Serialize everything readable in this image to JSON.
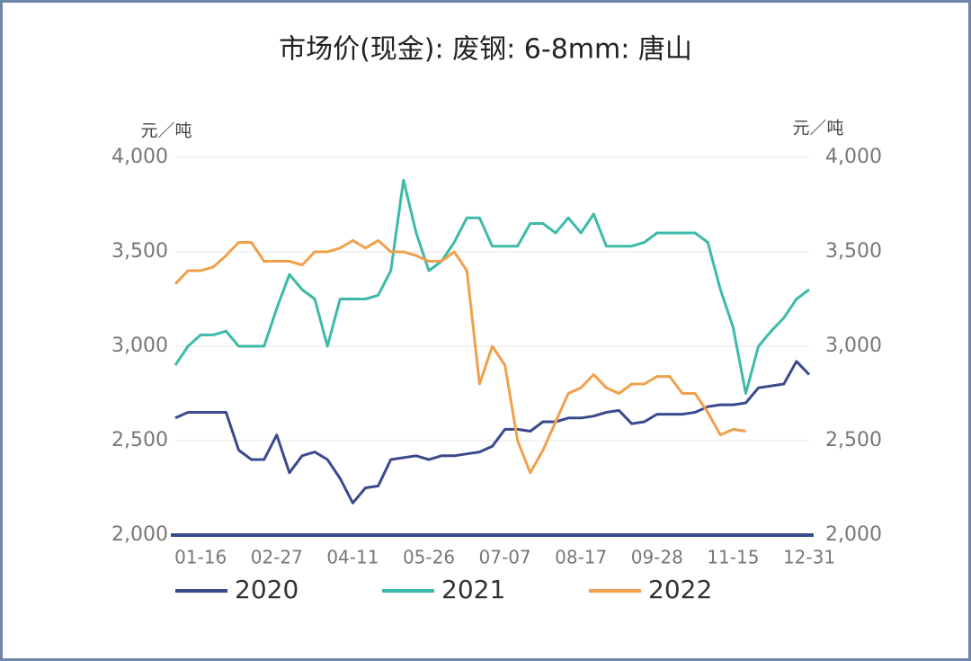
{
  "chart_data": {
    "type": "line",
    "title": "市场价(现金): 废钢: 6-8mm: 唐山",
    "ylabel": "元／吨",
    "y2label": "元／吨",
    "categories": [
      null,
      null,
      "01-16",
      null,
      null,
      null,
      null,
      null,
      "02-27",
      null,
      null,
      null,
      null,
      null,
      "04-11",
      null,
      null,
      null,
      null,
      null,
      "05-26",
      null,
      null,
      null,
      null,
      null,
      "07-07",
      null,
      null,
      null,
      null,
      null,
      "08-17",
      null,
      null,
      null,
      null,
      null,
      "09-28",
      null,
      null,
      null,
      null,
      null,
      "11-15",
      null,
      null,
      null,
      null,
      null,
      "12-31"
    ],
    "series": [
      {
        "name": "2020",
        "color": "#3a4a8c",
        "values": [
          2620,
          2650,
          2650,
          2650,
          2650,
          2450,
          2400,
          2400,
          2530,
          2330,
          2420,
          2440,
          2400,
          2300,
          2170,
          2250,
          2260,
          2400,
          2410,
          2420,
          2400,
          2420,
          2420,
          2430,
          2440,
          2470,
          2560,
          2560,
          2550,
          2600,
          2600,
          2620,
          2620,
          2630,
          2650,
          2660,
          2590,
          2600,
          2640,
          2640,
          2640,
          2650,
          2680,
          2690,
          2690,
          2700,
          2780,
          2790,
          2800,
          2920,
          2850
        ]
      },
      {
        "name": "2021",
        "color": "#3dbaa8",
        "values": [
          2900,
          3000,
          3060,
          3060,
          3080,
          3000,
          3000,
          3000,
          3200,
          3380,
          3300,
          3250,
          3000,
          3250,
          3250,
          3250,
          3270,
          3400,
          3880,
          3600,
          3400,
          3450,
          3550,
          3680,
          3680,
          3530,
          3530,
          3530,
          3650,
          3650,
          3600,
          3680,
          3600,
          3700,
          3530,
          3530,
          3530,
          3550,
          3600,
          3600,
          3600,
          3600,
          3550,
          3300,
          3100,
          2750,
          3000,
          3080,
          3150,
          3250,
          3300
        ]
      },
      {
        "name": "2022",
        "color": "#f0a04b",
        "values": [
          3330,
          3400,
          3400,
          3420,
          3480,
          3550,
          3550,
          3450,
          3450,
          3450,
          3430,
          3500,
          3500,
          3520,
          3560,
          3520,
          3560,
          3500,
          3500,
          3480,
          3450,
          3450,
          3500,
          3400,
          2800,
          3000,
          2900,
          2500,
          2330,
          2450,
          2600,
          2750,
          2780,
          2850,
          2780,
          2750,
          2800,
          2800,
          2840,
          2840,
          2750,
          2750,
          2650,
          2530,
          2560,
          2550,
          null,
          null,
          null,
          null,
          null
        ]
      }
    ],
    "ylim": [
      2000,
      4000
    ],
    "yticks": [
      {
        "value": 2000,
        "label": "2,000"
      },
      {
        "value": 2500,
        "label": "2,500"
      },
      {
        "value": 3000,
        "label": "3,000"
      },
      {
        "value": 3500,
        "label": "3,500"
      },
      {
        "value": 4000,
        "label": "4,000"
      }
    ],
    "y2lim": [
      2000,
      4000
    ],
    "y2ticks": [
      {
        "value": 2000,
        "label": "2,000"
      },
      {
        "value": 2500,
        "label": "2,500"
      },
      {
        "value": 3000,
        "label": "3,000"
      },
      {
        "value": 3500,
        "label": "3,500"
      },
      {
        "value": 4000,
        "label": "4,000"
      }
    ],
    "grid": true,
    "legend": "bottom"
  }
}
